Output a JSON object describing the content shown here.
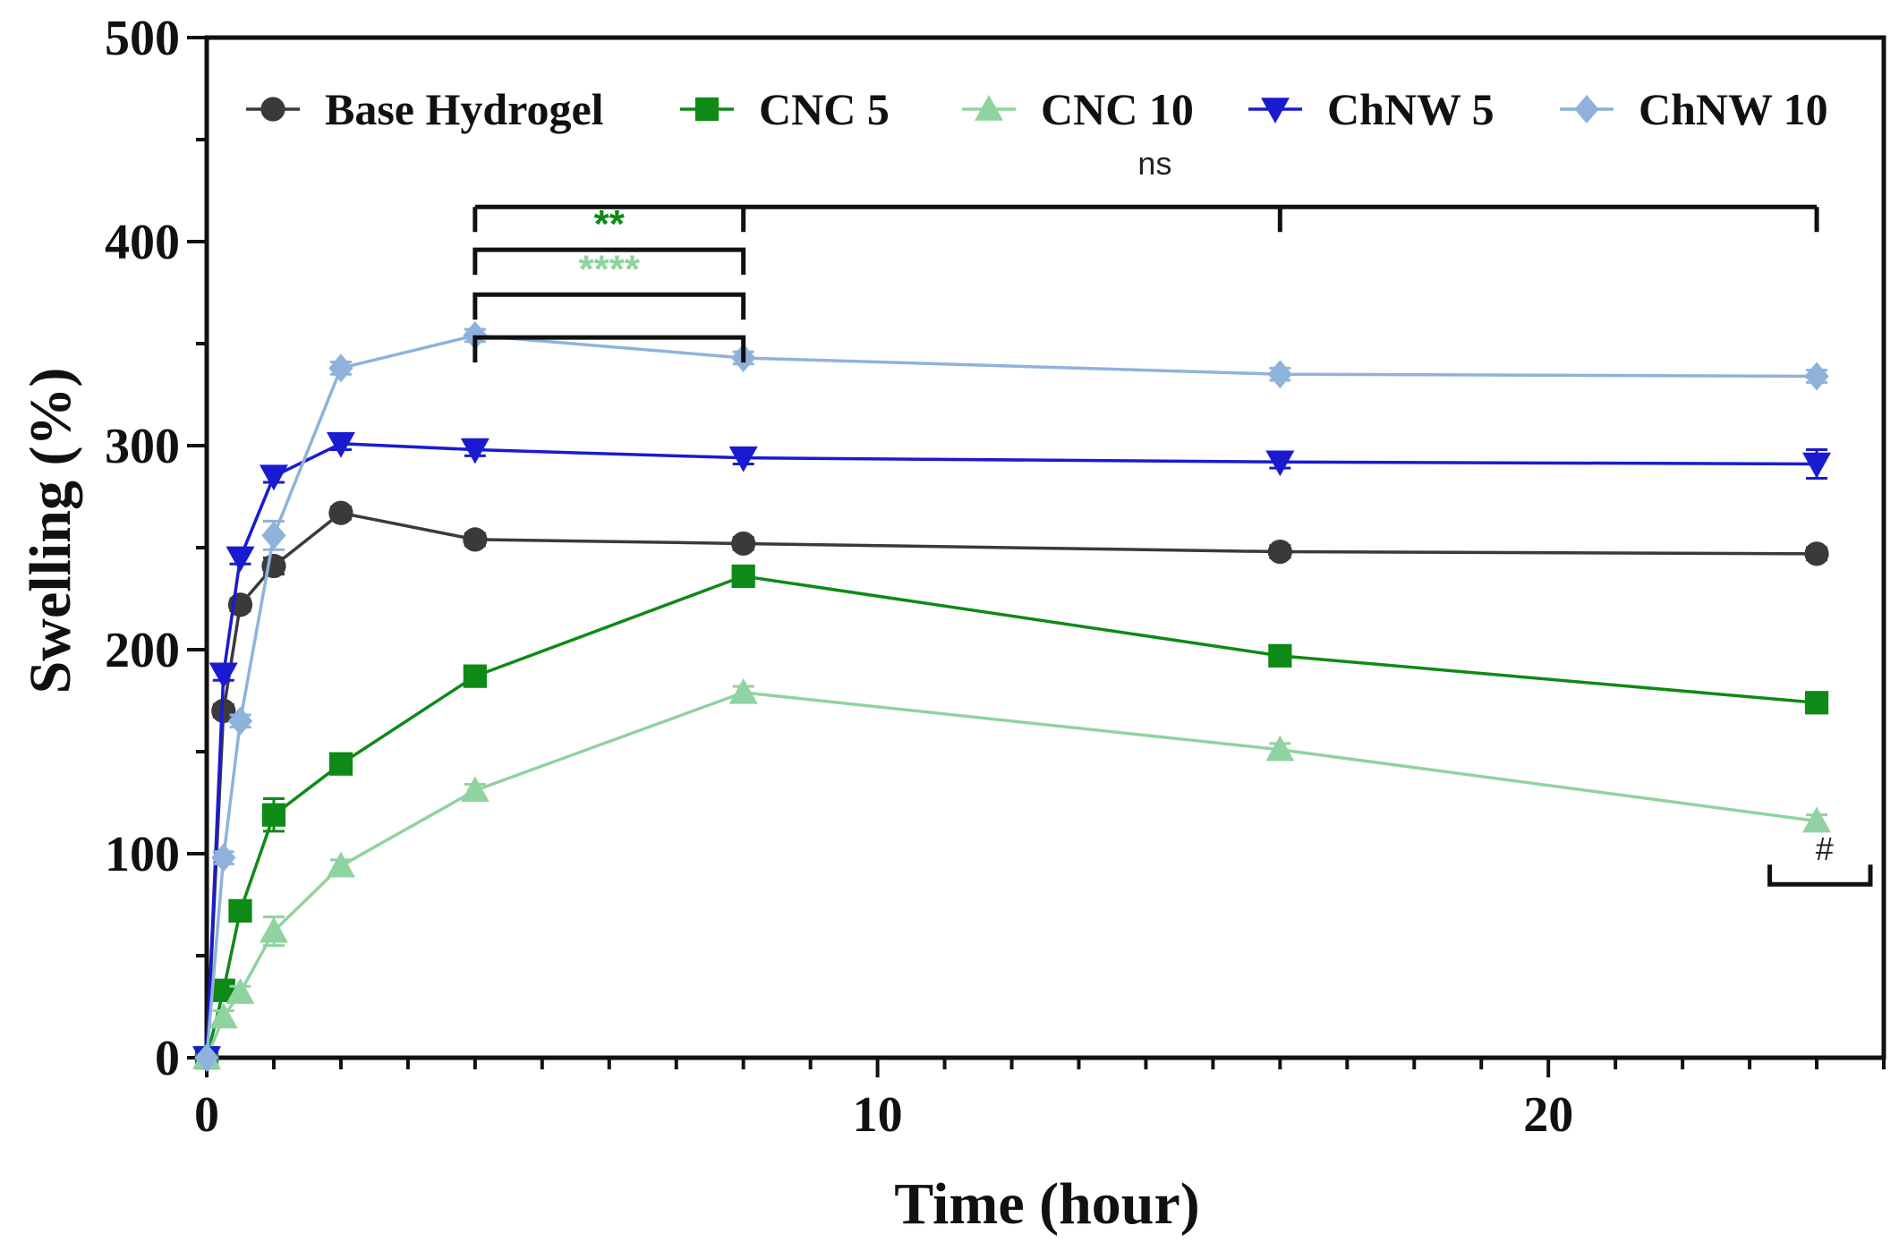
{
  "chart_data": {
    "type": "line",
    "xlabel": "Time (hour)",
    "ylabel": "Swelling (%)",
    "xlim": [
      0,
      25
    ],
    "ylim": [
      0,
      500
    ],
    "xticks": [
      0,
      10,
      20
    ],
    "yticks": [
      0,
      100,
      200,
      300,
      400,
      500
    ],
    "x_minor_step": 1,
    "grid": false,
    "legend_position": "top",
    "x": [
      0,
      0.25,
      0.5,
      1,
      2,
      4,
      8,
      16,
      24
    ],
    "series": [
      {
        "name": "Base Hydrogel",
        "color": "#3a3a3a",
        "marker": "circle",
        "values": [
          0,
          170,
          222,
          241,
          267,
          254,
          252,
          248,
          247
        ],
        "errors": [
          0,
          3,
          3,
          4,
          3,
          3,
          3,
          3,
          3
        ]
      },
      {
        "name": "CNC 5",
        "color": "#0e8a16",
        "marker": "square",
        "values": [
          0,
          33,
          72,
          119,
          144,
          187,
          236,
          197,
          174
        ],
        "errors": [
          0,
          3,
          4,
          8,
          4,
          4,
          4,
          4,
          4
        ]
      },
      {
        "name": "CNC 10",
        "color": "#8fd3a0",
        "marker": "triangle-up",
        "values": [
          0,
          20,
          32,
          62,
          94,
          131,
          179,
          151,
          116
        ],
        "errors": [
          0,
          3,
          3,
          7,
          3,
          3,
          3,
          3,
          3
        ]
      },
      {
        "name": "ChNW 5",
        "color": "#1a1ad1",
        "marker": "triangle-down",
        "values": [
          0,
          188,
          245,
          285,
          301,
          298,
          294,
          292,
          291
        ],
        "errors": [
          0,
          3,
          3,
          3,
          3,
          3,
          3,
          3,
          7
        ]
      },
      {
        "name": "ChNW 10",
        "color": "#8fb2dc",
        "marker": "diamond",
        "values": [
          0,
          98,
          165,
          256,
          338,
          354,
          343,
          335,
          334
        ],
        "errors": [
          0,
          3,
          3,
          7,
          3,
          3,
          3,
          3,
          3
        ]
      }
    ],
    "annotations": {
      "ns": {
        "text": "ns",
        "color": "#222222",
        "x_ticks": [
          4,
          8,
          16,
          24
        ],
        "y": 417,
        "label_y": 433
      },
      "cnc5": {
        "text": "**",
        "color": "#0e8a16",
        "x1": 4,
        "x2": 8,
        "y": 396,
        "label_y": 410
      },
      "cnc10": {
        "text": "****",
        "color": "#8fd3a0",
        "x1": 4,
        "x2": 8,
        "y": 374,
        "label_y": 388
      },
      "chnw5": {
        "x1": 4,
        "x2": 8,
        "y": 353
      },
      "hash": {
        "text": "#",
        "color": "#222222",
        "x1": 23.3,
        "x2": 24.8,
        "y": 85,
        "label_y": 97
      }
    }
  }
}
